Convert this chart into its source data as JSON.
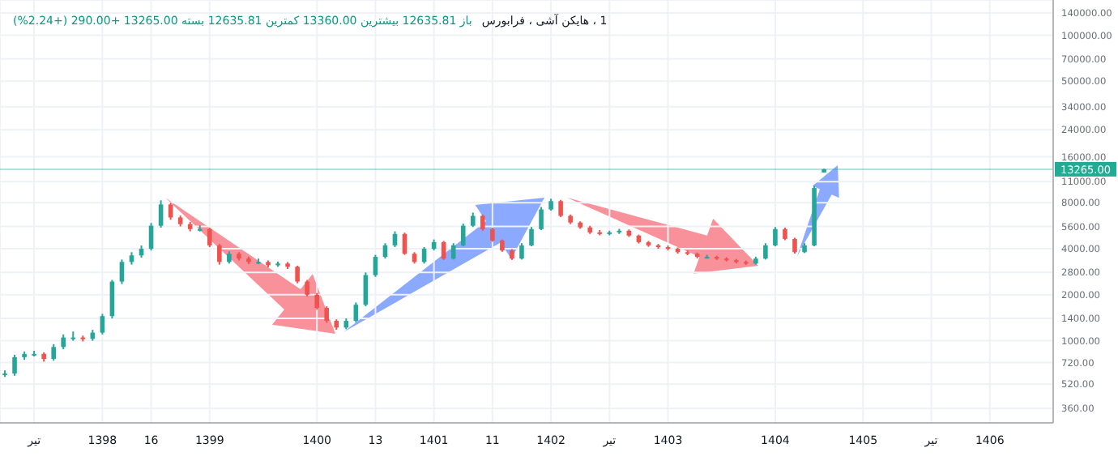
{
  "chart_data": {
    "type": "candlestick",
    "title": "1 ، هایکن آشی ، فرابورس",
    "subtitle": "باز 12635.81 بیشترین 13360.00 کمترین 12635.81 بسته 13265.00 +290.00 (+2.24%)",
    "categories": [
      null,
      null,
      null,
      "تیر",
      null,
      null,
      null,
      null,
      null,
      null,
      "1398",
      null,
      null,
      null,
      null,
      "16",
      null,
      null,
      null,
      null,
      null,
      "1399",
      null,
      null,
      null,
      null,
      null,
      null,
      null,
      null,
      null,
      null,
      "1400",
      null,
      null,
      null,
      null,
      null,
      "13",
      null,
      null,
      null,
      null,
      null,
      "1401",
      null,
      null,
      null,
      null,
      null,
      "11",
      null,
      null,
      null,
      null,
      null,
      "1402",
      null,
      null,
      null,
      null,
      null,
      "تیر",
      null,
      null,
      null,
      null,
      null,
      "1403",
      null,
      null,
      null,
      null,
      null,
      null,
      null,
      null,
      null,
      null,
      "1404",
      null,
      null,
      null,
      null,
      null,
      null,
      null,
      null,
      "1405",
      null,
      null,
      null,
      null,
      null,
      null,
      "تیر",
      null,
      null,
      null,
      null,
      null,
      "1406",
      null,
      null,
      null,
      null,
      null,
      null
    ],
    "ohlc": [
      [
        600,
        640,
        580,
        610
      ],
      [
        610,
        810,
        590,
        780
      ],
      [
        780,
        850,
        750,
        820
      ],
      [
        820,
        860,
        790,
        820
      ],
      [
        820,
        840,
        730,
        760
      ],
      [
        760,
        950,
        740,
        910
      ],
      [
        910,
        1100,
        880,
        1050
      ],
      [
        1050,
        1150,
        1000,
        1050
      ],
      [
        1050,
        1080,
        990,
        1030
      ],
      [
        1030,
        1180,
        1000,
        1130
      ],
      [
        1130,
        1500,
        1100,
        1450
      ],
      [
        1450,
        2500,
        1400,
        2440
      ],
      [
        2440,
        3400,
        2350,
        3280
      ],
      [
        3280,
        3800,
        3150,
        3620
      ],
      [
        3620,
        4200,
        3500,
        4000
      ],
      [
        4000,
        5900,
        3900,
        5660
      ],
      [
        5660,
        8300,
        5500,
        7800
      ],
      [
        7800,
        8000,
        6200,
        6410
      ],
      [
        6410,
        6600,
        5600,
        5800
      ],
      [
        5800,
        6000,
        5200,
        5380
      ],
      [
        5380,
        5700,
        5200,
        5380
      ],
      [
        5380,
        5500,
        4100,
        4210
      ],
      [
        4210,
        4300,
        3150,
        3280
      ],
      [
        3280,
        3850,
        3200,
        3710
      ],
      [
        3710,
        3800,
        3350,
        3450
      ],
      [
        3450,
        3550,
        3180,
        3280
      ],
      [
        3280,
        3450,
        3180,
        3280
      ],
      [
        3280,
        3350,
        3020,
        3120
      ],
      [
        3120,
        3300,
        3050,
        3200
      ],
      [
        3200,
        3280,
        2950,
        3050
      ],
      [
        3050,
        3100,
        2380,
        2440
      ],
      [
        2440,
        2500,
        1950,
        2000
      ],
      [
        2000,
        2050,
        1600,
        1640
      ],
      [
        1640,
        1680,
        1310,
        1350
      ],
      [
        1350,
        1380,
        1180,
        1220
      ],
      [
        1220,
        1400,
        1190,
        1350
      ],
      [
        1350,
        1780,
        1320,
        1720
      ],
      [
        1720,
        2800,
        1680,
        2690
      ],
      [
        2690,
        3650,
        2620,
        3540
      ],
      [
        3540,
        4350,
        3450,
        4210
      ],
      [
        4210,
        5200,
        4100,
        5000
      ],
      [
        5000,
        5100,
        3650,
        3710
      ],
      [
        3710,
        3800,
        3200,
        3280
      ],
      [
        3280,
        4100,
        3200,
        4000
      ],
      [
        4000,
        4600,
        3900,
        4420
      ],
      [
        4420,
        4500,
        3380,
        3450
      ],
      [
        3450,
        4350,
        3400,
        4210
      ],
      [
        4210,
        5850,
        4150,
        5660
      ],
      [
        5660,
        6900,
        5550,
        6570
      ],
      [
        6570,
        6700,
        5250,
        5380
      ],
      [
        5380,
        5500,
        4450,
        4530
      ],
      [
        4530,
        4600,
        3820,
        3900
      ],
      [
        3900,
        3980,
        3380,
        3450
      ],
      [
        3450,
        4350,
        3400,
        4210
      ],
      [
        4210,
        5550,
        4150,
        5380
      ],
      [
        5380,
        7500,
        5300,
        7240
      ],
      [
        7240,
        8500,
        7100,
        8200
      ],
      [
        8200,
        8350,
        6450,
        6570
      ],
      [
        6570,
        6700,
        5800,
        5940
      ],
      [
        5940,
        6050,
        5400,
        5520
      ],
      [
        5520,
        5650,
        5000,
        5120
      ],
      [
        5120,
        5300,
        4900,
        5000
      ],
      [
        5000,
        5250,
        4900,
        5120
      ],
      [
        5120,
        5400,
        5000,
        5250
      ],
      [
        5250,
        5350,
        4780,
        4880
      ],
      [
        4880,
        4950,
        4330,
        4420
      ],
      [
        4420,
        4500,
        4120,
        4210
      ],
      [
        4210,
        4300,
        4000,
        4100
      ],
      [
        4100,
        4200,
        3900,
        4000
      ],
      [
        4000,
        4080,
        3720,
        3800
      ],
      [
        3800,
        3900,
        3630,
        3710
      ],
      [
        3710,
        3780,
        3460,
        3540
      ],
      [
        3540,
        3650,
        3450,
        3540
      ],
      [
        3540,
        3600,
        3380,
        3450
      ],
      [
        3450,
        3520,
        3300,
        3370
      ],
      [
        3370,
        3430,
        3210,
        3280
      ],
      [
        3280,
        3350,
        3130,
        3200
      ],
      [
        3200,
        3550,
        3150,
        3450
      ],
      [
        3450,
        4350,
        3400,
        4210
      ],
      [
        4210,
        5550,
        4150,
        5380
      ],
      [
        5380,
        5500,
        4550,
        4640
      ],
      [
        4640,
        4720,
        3720,
        3800
      ],
      [
        3800,
        4350,
        3750,
        4210
      ],
      [
        4210,
        10300,
        4150,
        10000
      ],
      [
        12635.81,
        13360,
        12635.81,
        13265
      ],
      null,
      null,
      null,
      null,
      null,
      null,
      null,
      null,
      null,
      null,
      null,
      null,
      null,
      null,
      null,
      null,
      null,
      null,
      null,
      null,
      null,
      null,
      null
    ],
    "colors": [
      "#26a69a",
      "#26a69a",
      "#26a69a",
      "#26a69a",
      "#ef5350",
      "#26a69a",
      "#26a69a",
      "#26a69a",
      "#ef5350",
      "#26a69a",
      "#26a69a",
      "#26a69a",
      "#26a69a",
      "#26a69a",
      "#26a69a",
      "#26a69a",
      "#26a69a",
      "#ef5350",
      "#ef5350",
      "#ef5350",
      "#26a69a",
      "#ef5350",
      "#ef5350",
      "#26a69a",
      "#ef5350",
      "#ef5350",
      "#26a69a",
      "#ef5350",
      "#26a69a",
      "#ef5350",
      "#ef5350",
      "#ef5350",
      "#ef5350",
      "#ef5350",
      "#ef5350",
      "#26a69a",
      "#26a69a",
      "#26a69a",
      "#26a69a",
      "#26a69a",
      "#26a69a",
      "#ef5350",
      "#ef5350",
      "#26a69a",
      "#26a69a",
      "#ef5350",
      "#26a69a",
      "#26a69a",
      "#26a69a",
      "#ef5350",
      "#ef5350",
      "#ef5350",
      "#ef5350",
      "#26a69a",
      "#26a69a",
      "#26a69a",
      "#26a69a",
      "#ef5350",
      "#ef5350",
      "#ef5350",
      "#ef5350",
      "#ef5350",
      "#26a69a",
      "#26a69a",
      "#ef5350",
      "#ef5350",
      "#ef5350",
      "#ef5350",
      "#ef5350",
      "#ef5350",
      "#ef5350",
      "#ef5350",
      "#26a69a",
      "#ef5350",
      "#ef5350",
      "#ef5350",
      "#ef5350",
      "#26a69a",
      "#26a69a",
      "#26a69a",
      "#ef5350",
      "#ef5350",
      "#26a69a",
      "#26a69a",
      "#26a69a",
      null,
      null,
      null,
      null,
      null,
      null,
      null,
      null,
      null,
      null,
      null,
      null,
      null,
      null,
      null,
      null,
      null,
      null,
      null,
      null,
      null,
      null,
      null
    ],
    "log": true,
    "ylim": [
      290,
      170000
    ],
    "yticks": [
      {
        "value": 360,
        "label": "360.00"
      },
      {
        "value": 520,
        "label": "520.00"
      },
      {
        "value": 720,
        "label": "720.00"
      },
      {
        "value": 1000,
        "label": "1000.00"
      },
      {
        "value": 1400,
        "label": "1400.00"
      },
      {
        "value": 2000,
        "label": "2000.00"
      },
      {
        "value": 2800,
        "label": "2800.00"
      },
      {
        "value": 4000,
        "label": "4000.00"
      },
      {
        "value": 5600,
        "label": "5600.00"
      },
      {
        "value": 8000,
        "label": "8000.00"
      },
      {
        "value": 11000,
        "label": "11000.00"
      },
      {
        "value": 16000,
        "label": "16000.00"
      },
      {
        "value": 24000,
        "label": "24000.00"
      },
      {
        "value": 34000,
        "label": "34000.00"
      },
      {
        "value": 50000,
        "label": "50000.00"
      },
      {
        "value": 70000,
        "label": "70000.00"
      },
      {
        "value": 100000,
        "label": "100000.00"
      },
      {
        "value": 140000,
        "label": "140000.00"
      }
    ],
    "grid": true,
    "ref_lines": [
      {
        "axis": "y",
        "value": 13265,
        "label": "13265.00",
        "color": "#22ab94"
      }
    ]
  }
}
